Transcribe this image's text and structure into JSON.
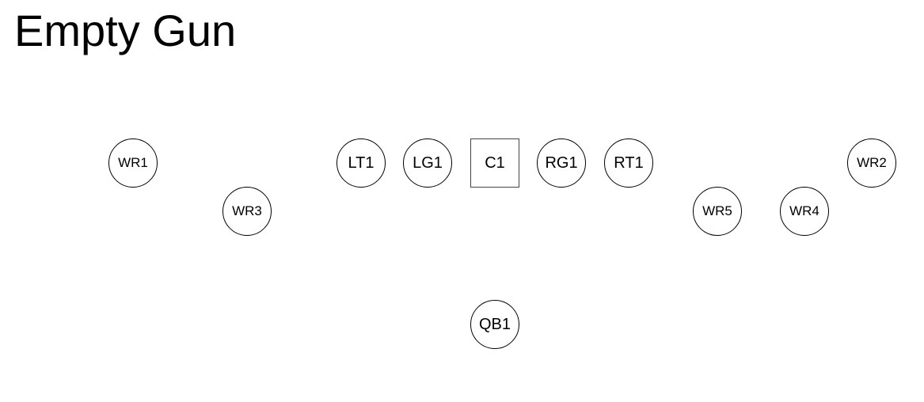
{
  "title": "Empty Gun",
  "players": {
    "wr1": "WR1",
    "wr3": "WR3",
    "lt1": "LT1",
    "lg1": "LG1",
    "c1": "C1",
    "rg1": "RG1",
    "rt1": "RT1",
    "wr5": "WR5",
    "wr4": "WR4",
    "wr2": "WR2",
    "qb1": "QB1"
  }
}
